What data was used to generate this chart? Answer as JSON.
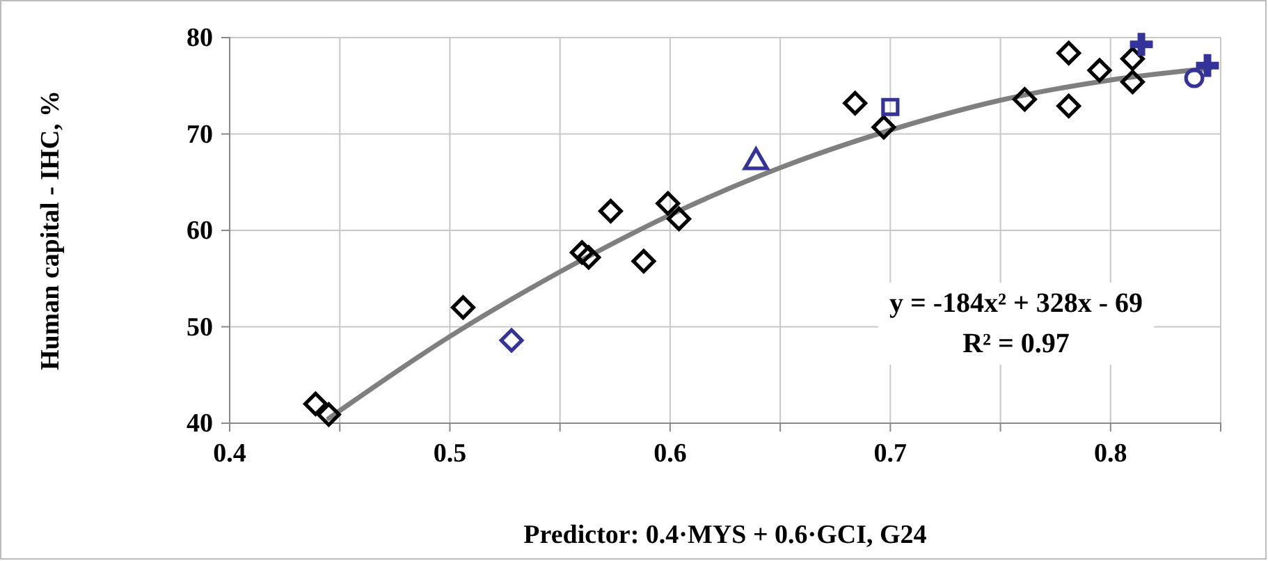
{
  "chart_data": {
    "type": "scatter",
    "xlabel": "Predictor: 0.4·MYS + 0.6·GCI, G24",
    "ylabel": "Human capital - IHC, %",
    "xlim": [
      0.4,
      0.85
    ],
    "ylim": [
      40,
      80
    ],
    "xticks": [
      0.4,
      {
        "value": 0.45,
        "label": null
      },
      0.5,
      {
        "value": 0.55,
        "label": null
      },
      0.6,
      {
        "value": 0.65,
        "label": null
      },
      0.7,
      {
        "value": 0.75,
        "label": null
      },
      0.8,
      {
        "value": 0.85,
        "label": null
      }
    ],
    "yticks": [
      40,
      50,
      60,
      70,
      80
    ],
    "grid": true,
    "annotations": [
      "y = -184x² + 328x - 69",
      "R² = 0.97"
    ],
    "series": [
      {
        "type": "line",
        "color": "#7f7f7f",
        "line_style": "solid",
        "x": [
          0.445,
          0.5,
          0.55,
          0.6,
          0.65,
          0.7,
          0.75,
          0.8,
          0.845
        ],
        "values": [
          40.5,
          49.0,
          55.7,
          61.6,
          66.5,
          70.4,
          73.5,
          75.6,
          76.8
        ]
      },
      {
        "color": "#000000",
        "marker": "diamond",
        "x": [
          0.439,
          0.445,
          0.506,
          0.56,
          0.563,
          0.573,
          0.588,
          0.599,
          0.604,
          0.684,
          0.697,
          0.761,
          0.781,
          0.781,
          0.795,
          0.81,
          0.81
        ],
        "values": [
          42.0,
          40.9,
          52.0,
          57.7,
          57.2,
          62.0,
          56.8,
          62.8,
          61.2,
          73.2,
          70.7,
          73.6,
          78.4,
          72.9,
          76.6,
          77.8,
          75.4
        ]
      },
      {
        "color": "#333399",
        "marker": "diamond",
        "x": [
          0.528
        ],
        "values": [
          48.6
        ]
      },
      {
        "color": "#333399",
        "marker": "triangle",
        "x": [
          0.639
        ],
        "values": [
          67.1
        ]
      },
      {
        "color": "#333399",
        "marker": "square",
        "x": [
          0.7
        ],
        "values": [
          72.8
        ]
      },
      {
        "color": "#333399",
        "marker": "cross",
        "x": [
          0.814
        ],
        "values": [
          79.3
        ]
      },
      {
        "color": "#333399",
        "marker": "circle",
        "x": [
          0.838
        ],
        "values": [
          75.8
        ]
      },
      {
        "color": "#333399",
        "marker": "cross",
        "x": [
          0.844
        ],
        "values": [
          77.1
        ]
      }
    ]
  }
}
